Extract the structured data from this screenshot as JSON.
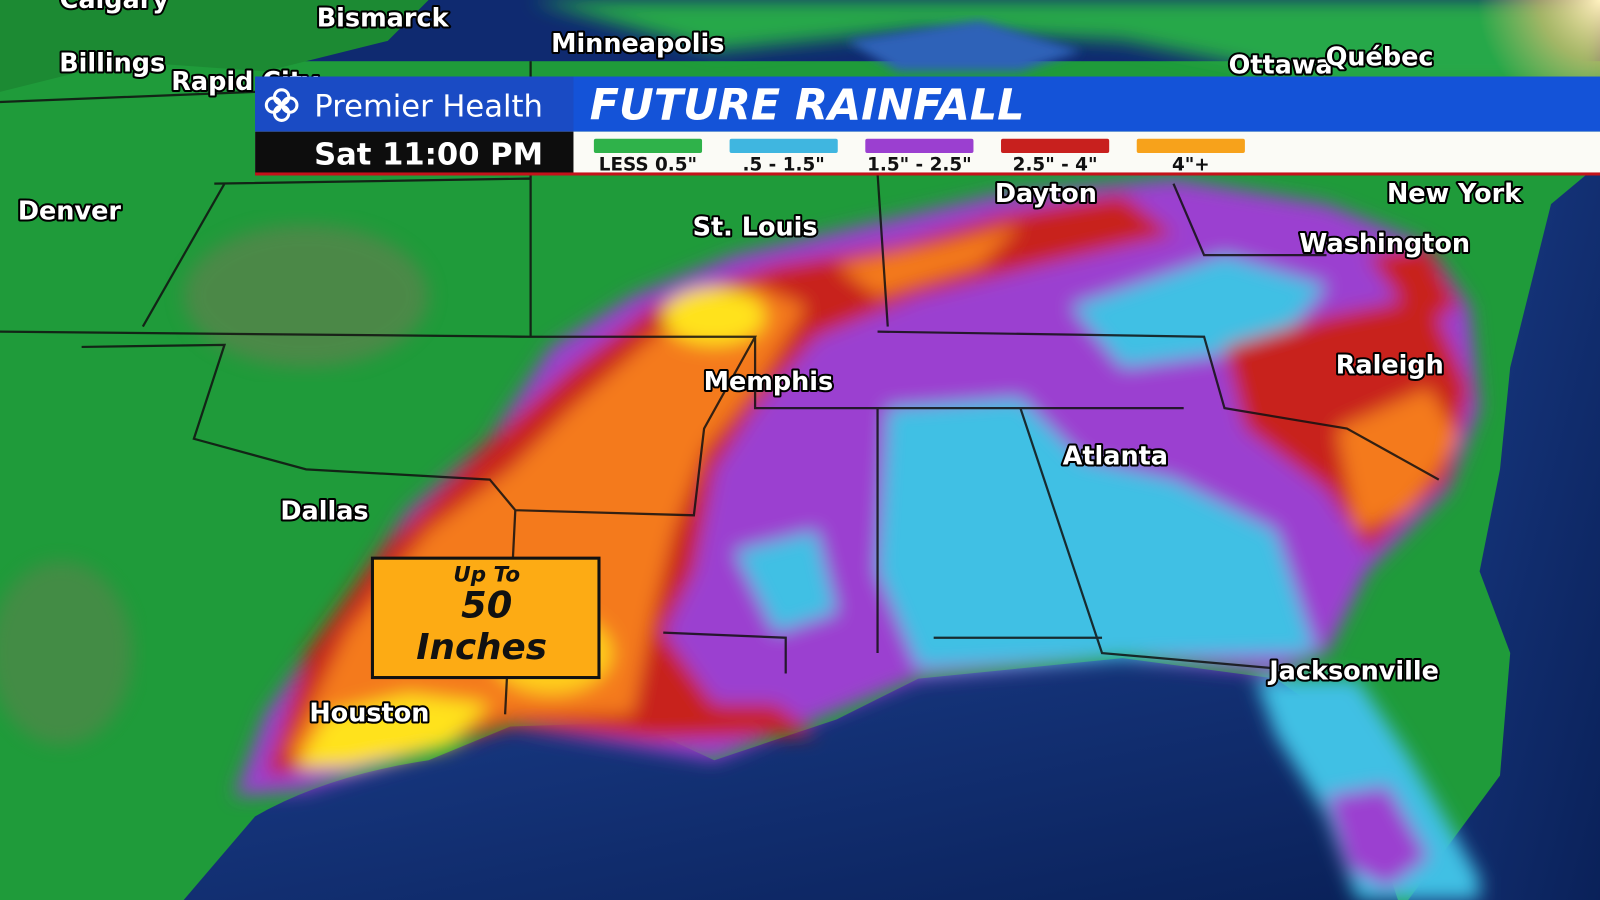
{
  "header": {
    "brand": "Premier Health",
    "title": "FUTURE RAINFALL",
    "time": "Sat 11:00 PM"
  },
  "legend": [
    {
      "label": "LESS 0.5\"",
      "color": "#2fb24a"
    },
    {
      "label": ".5 - 1.5\"",
      "color": "#3fb6e0"
    },
    {
      "label": "1.5\" - 2.5\"",
      "color": "#9b3fd0"
    },
    {
      "label": "2.5\" - 4\"",
      "color": "#c8201e"
    },
    {
      "label": "4\"+",
      "color": "#f7a21b"
    }
  ],
  "callout": {
    "lines": [
      "Up To",
      "50",
      "Inches"
    ]
  },
  "cities": [
    "Calgary",
    "Bismarck",
    "Billings",
    "Rapid City",
    "Minneapolis",
    "Ottawa",
    "Québec",
    "Denver",
    "St. Louis",
    "Dayton",
    "New York",
    "Washington",
    "Memphis",
    "Raleigh",
    "Atlanta",
    "Dallas",
    "Houston",
    "Jacksonville"
  ]
}
